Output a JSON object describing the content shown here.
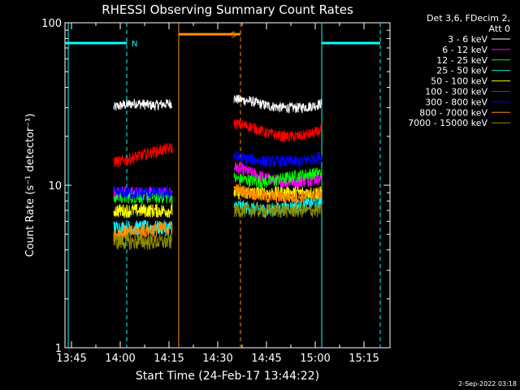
{
  "chart_data": {
    "type": "line",
    "title": "RHESSI Observing Summary Count Rates",
    "xlabel": "Start Time (24-Feb-17 13:44:22)",
    "ylabel": "Count Rate (s⁻¹ detector⁻¹)",
    "y_scale": "log",
    "ylim": [
      1,
      100
    ],
    "xlim": [
      "13:43",
      "15:23"
    ],
    "x_ticks": [
      "13:45",
      "14:00",
      "14:15",
      "14:30",
      "14:45",
      "15:00",
      "15:15"
    ],
    "y_ticks": [
      "1",
      "10",
      "100"
    ],
    "legend_header": [
      "Det 3,6, FDecim 2,",
      "Att 0"
    ],
    "legend_position": "top-right",
    "timestamp": "2-Sep-2022 03:18",
    "series": [
      {
        "name": "3 - 6 keV",
        "color": "#ffffff",
        "segments": [
          {
            "x": [
              "13:58",
              "14:00",
              "14:05",
              "14:10",
              "14:16"
            ],
            "y": [
              30,
              31,
              32,
              31,
              32
            ]
          },
          {
            "x": [
              "14:35",
              "14:40",
              "14:45",
              "14:50",
              "14:55",
              "15:00",
              "15:02"
            ],
            "y": [
              34,
              33,
              31,
              30,
              30,
              31,
              32
            ]
          }
        ]
      },
      {
        "name": "6 - 12 keV",
        "color": "#ff00ff",
        "segments": [
          {
            "x": [
              "13:58",
              "14:05",
              "14:16"
            ],
            "y": [
              9,
              9,
              9
            ]
          },
          {
            "x": [
              "14:35",
              "14:40",
              "14:45",
              "14:50",
              "14:55",
              "15:00",
              "15:02"
            ],
            "y": [
              13,
              12,
              11,
              10.5,
              10.5,
              11,
              11
            ]
          }
        ]
      },
      {
        "name": "12 - 25 keV",
        "color": "#00ff00",
        "segments": [
          {
            "x": [
              "13:58",
              "14:05",
              "14:16"
            ],
            "y": [
              8.5,
              8.5,
              8.5
            ]
          },
          {
            "x": [
              "14:35",
              "14:45",
              "14:55",
              "15:02"
            ],
            "y": [
              11,
              10.5,
              11.5,
              12
            ]
          }
        ]
      },
      {
        "name": "25 - 50 keV",
        "color": "#00ffff",
        "segments": [
          {
            "x": [
              "13:58",
              "14:05",
              "14:16"
            ],
            "y": [
              5.5,
              5.5,
              5.5
            ]
          },
          {
            "x": [
              "14:35",
              "14:45",
              "14:55",
              "15:02"
            ],
            "y": [
              7.5,
              7,
              7.5,
              8
            ]
          }
        ]
      },
      {
        "name": "50 - 100 keV",
        "color": "#ffff00",
        "segments": [
          {
            "x": [
              "13:58",
              "14:05",
              "14:16"
            ],
            "y": [
              7,
              7,
              7
            ]
          },
          {
            "x": [
              "14:35",
              "14:45",
              "14:55",
              "15:02"
            ],
            "y": [
              9,
              9,
              9,
              9
            ]
          }
        ]
      },
      {
        "name": "100 - 300 keV",
        "color": "#ff0000",
        "segments": [
          {
            "x": [
              "13:58",
              "14:00",
              "14:05",
              "14:10",
              "14:16"
            ],
            "y": [
              14,
              14,
              15,
              16,
              17
            ]
          },
          {
            "x": [
              "14:35",
              "14:40",
              "14:45",
              "14:50",
              "14:55",
              "15:00",
              "15:02"
            ],
            "y": [
              24,
              23,
              21,
              20,
              20,
              21,
              22
            ]
          }
        ]
      },
      {
        "name": "300 - 800 keV",
        "color": "#0000ff",
        "segments": [
          {
            "x": [
              "13:58",
              "14:05",
              "14:16"
            ],
            "y": [
              9,
              9,
              9
            ]
          },
          {
            "x": [
              "14:35",
              "14:45",
              "14:55",
              "15:02"
            ],
            "y": [
              15,
              14,
              14,
              15
            ]
          }
        ]
      },
      {
        "name": "800 - 7000 keV",
        "color": "#ff8c00",
        "segments": [
          {
            "x": [
              "13:58",
              "14:05",
              "14:16"
            ],
            "y": [
              5,
              5.2,
              5.5
            ]
          },
          {
            "x": [
              "14:35",
              "14:45",
              "14:55",
              "15:02"
            ],
            "y": [
              9.5,
              8.5,
              8.5,
              9
            ]
          }
        ]
      },
      {
        "name": "7000 - 15000 keV",
        "color": "#8b8b00",
        "segments": [
          {
            "x": [
              "13:58",
              "14:05",
              "14:16"
            ],
            "y": [
              4.5,
              4.5,
              4.5
            ]
          },
          {
            "x": [
              "14:35",
              "14:45",
              "14:55",
              "15:02"
            ],
            "y": [
              7,
              7,
              7,
              7
            ]
          }
        ]
      }
    ],
    "annotations": [
      {
        "label": "N",
        "color": "#00ffff",
        "level": 75,
        "bars": [
          {
            "from": "13:43",
            "to": "14:02"
          },
          {
            "from": "15:02",
            "to": "15:20"
          }
        ],
        "solid_lines": [
          "13:44",
          "15:02"
        ],
        "dashed_lines": [
          "14:02",
          "15:20"
        ]
      },
      {
        "label": "S",
        "color": "#ff8c00",
        "level": 85,
        "bars": [
          {
            "from": "14:18",
            "to": "14:37"
          }
        ],
        "solid_lines": [
          "14:18"
        ],
        "dashed_lines": [
          "14:37"
        ]
      }
    ]
  }
}
